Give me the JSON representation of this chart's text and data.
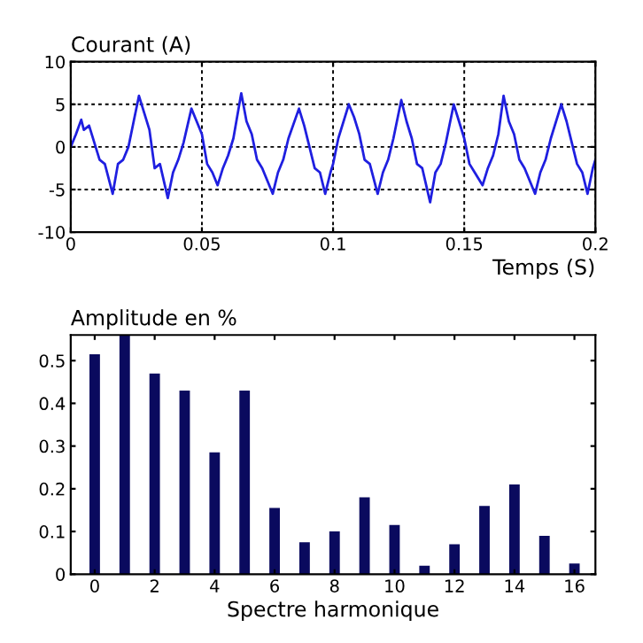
{
  "chart_data": [
    {
      "type": "line",
      "title": "Courant (A)",
      "xlabel": "Temps (S)",
      "color": "#1f1fe0",
      "grid": true,
      "line_style": "solid",
      "marker": "none",
      "x": [
        0.0,
        0.002,
        0.004,
        0.005,
        0.007,
        0.009,
        0.011,
        0.013,
        0.016,
        0.018,
        0.02,
        0.022,
        0.024,
        0.026,
        0.028,
        0.03,
        0.032,
        0.034,
        0.037,
        0.039,
        0.041,
        0.043,
        0.046,
        0.048,
        0.05,
        0.052,
        0.054,
        0.056,
        0.058,
        0.06,
        0.062,
        0.065,
        0.067,
        0.069,
        0.071,
        0.073,
        0.077,
        0.079,
        0.081,
        0.083,
        0.087,
        0.089,
        0.091,
        0.093,
        0.095,
        0.097,
        0.099,
        0.1,
        0.102,
        0.106,
        0.108,
        0.11,
        0.112,
        0.114,
        0.117,
        0.119,
        0.121,
        0.123,
        0.126,
        0.128,
        0.13,
        0.132,
        0.134,
        0.137,
        0.139,
        0.141,
        0.143,
        0.146,
        0.148,
        0.15,
        0.152,
        0.154,
        0.157,
        0.159,
        0.161,
        0.163,
        0.165,
        0.167,
        0.169,
        0.171,
        0.173,
        0.177,
        0.179,
        0.181,
        0.183,
        0.187,
        0.189,
        0.191,
        0.193,
        0.195,
        0.197,
        0.199,
        0.2
      ],
      "values": [
        0,
        1.5,
        3.2,
        2,
        2.5,
        0.5,
        -1.5,
        -2,
        -5.5,
        -2,
        -1.5,
        0,
        3,
        6,
        4,
        2,
        -2.5,
        -2,
        -6,
        -3,
        -1.5,
        0.5,
        4.5,
        3,
        1.5,
        -2,
        -3,
        -4.5,
        -2.5,
        -1,
        1,
        6.3,
        3,
        1.5,
        -1.5,
        -2.5,
        -5.5,
        -3,
        -1.5,
        1,
        4.5,
        2.5,
        0,
        -2.5,
        -3,
        -5.5,
        -3,
        -2,
        1,
        5,
        3.5,
        1.5,
        -1.5,
        -2,
        -5.5,
        -3,
        -1.5,
        1,
        5.5,
        3,
        1,
        -2,
        -2.5,
        -6.5,
        -3,
        -2,
        0.5,
        5,
        3,
        1,
        -2,
        -3,
        -4.5,
        -2.5,
        -1,
        1.5,
        6,
        3,
        1.5,
        -1.5,
        -2.5,
        -5.5,
        -3,
        -1.5,
        1,
        5,
        3,
        0.5,
        -2,
        -3,
        -5.5,
        -2.5,
        -1.5
      ],
      "xlim": [
        0,
        0.2
      ],
      "xticks": [
        0,
        0.05,
        0.1,
        0.15,
        0.2
      ],
      "ylim": [
        -10,
        10
      ],
      "yticks": [
        -10,
        -5,
        0,
        5,
        10
      ]
    },
    {
      "type": "bar",
      "title": "Amplitude en %",
      "xlabel": "Spectre harmonique",
      "color": "#0a0a5e",
      "grid": false,
      "x": [
        0,
        1,
        2,
        3,
        4,
        5,
        6,
        7,
        8,
        9,
        10,
        11,
        12,
        13,
        14,
        15,
        16
      ],
      "values": [
        0.515,
        0.56,
        0.47,
        0.43,
        0.285,
        0.43,
        0.155,
        0.075,
        0.1,
        0.18,
        0.115,
        0.02,
        0.07,
        0.16,
        0.21,
        0.09,
        0.025
      ],
      "xlim": [
        -0.8,
        16.7
      ],
      "xticks": [
        0,
        2,
        4,
        6,
        8,
        10,
        12,
        14,
        16
      ],
      "ylim": [
        0,
        0.56
      ],
      "yticks": [
        0,
        0.1,
        0.2,
        0.3,
        0.4,
        0.5
      ]
    }
  ]
}
